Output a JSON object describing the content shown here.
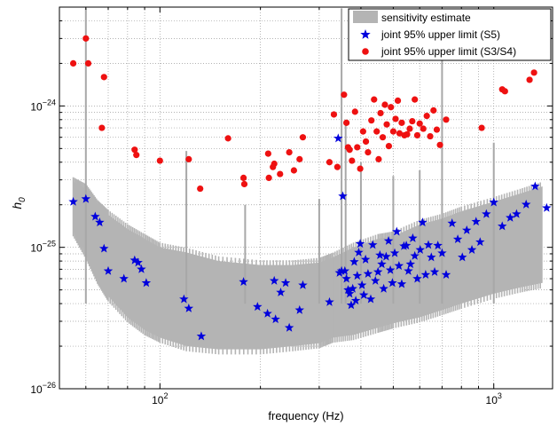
{
  "chart_data": {
    "type": "scatter",
    "title": "",
    "xlabel": "frequency (Hz)",
    "ylabel": "h",
    "ylabel_sub": "0",
    "xscale": "log",
    "yscale": "log",
    "xlim": [
      50,
      1500
    ],
    "ylim": [
      1e-26,
      5e-24
    ],
    "grid": true,
    "legend_position": "top-right",
    "x_ticks": [
      {
        "value": 100,
        "base": "10",
        "exp": "2"
      },
      {
        "value": 1000,
        "base": "10",
        "exp": "3"
      }
    ],
    "y_ticks": [
      {
        "value": 1e-26,
        "base": "10",
        "exp": "−26"
      },
      {
        "value": 1e-25,
        "base": "10",
        "exp": "−25"
      },
      {
        "value": 1e-24,
        "base": "10",
        "exp": "−24"
      }
    ],
    "series": [
      {
        "name": "sensitivity estimate",
        "kind": "band",
        "color": "#b4b4b4",
        "x": [
          55,
          60,
          65,
          70,
          80,
          90,
          100,
          120,
          150,
          200,
          250,
          300,
          330,
          380,
          450,
          500,
          600,
          700,
          800,
          1000,
          1200,
          1400
        ],
        "lower": [
          1.3e-25,
          9e-26,
          6e-26,
          4.5e-26,
          3.2e-26,
          2.6e-26,
          2.3e-26,
          2e-26,
          1.9e-26,
          1.9e-26,
          2e-26,
          2.1e-26,
          2.3e-26,
          2.4e-26,
          2.7e-26,
          2.9e-26,
          3.2e-26,
          3.6e-26,
          4e-26,
          4.7e-26,
          5.2e-26,
          5.6e-26
        ],
        "upper": [
          2.9e-25,
          2.6e-25,
          2e-25,
          1.7e-25,
          1.35e-25,
          1.15e-25,
          1e-25,
          9.2e-26,
          8e-26,
          7.5e-26,
          7.5e-26,
          7.8e-26,
          8.5e-26,
          1e-25,
          1.15e-25,
          1.2e-25,
          1.45e-25,
          1.6e-25,
          1.8e-25,
          2.1e-25,
          2.4e-25,
          2.7e-25
        ],
        "lines": [
          {
            "x": 60,
            "y": 4.9e-24
          },
          {
            "x": 120,
            "y": 4.8e-25
          },
          {
            "x": 180,
            "y": 2e-25
          },
          {
            "x": 300,
            "y": 2.2e-25
          },
          {
            "x": 350,
            "y": 4.9e-24
          },
          {
            "x": 360,
            "y": 8e-25
          },
          {
            "x": 400,
            "y": 4e-25
          },
          {
            "x": 500,
            "y": 3.2e-25
          },
          {
            "x": 600,
            "y": 3.5e-25
          },
          {
            "x": 700,
            "y": 4.4e-24
          },
          {
            "x": 1000,
            "y": 5.5e-25
          }
        ]
      },
      {
        "name": "joint 95% upper limit (S5)",
        "kind": "marker",
        "marker": "star",
        "color": "#0000dd",
        "x": [
          55,
          60,
          64,
          66,
          68,
          70,
          78,
          84,
          86,
          88,
          91,
          118,
          122,
          133,
          178,
          196,
          210,
          220,
          222,
          230,
          238,
          244,
          262,
          268,
          322,
          345,
          350,
          342,
          353,
          358,
          362,
          366,
          370,
          374,
          378,
          382,
          386,
          390,
          394,
          398,
          403,
          408,
          413,
          420,
          428,
          434,
          442,
          450,
          456,
          462,
          468,
          476,
          484,
          490,
          497,
          505,
          512,
          520,
          530,
          538,
          547,
          555,
          563,
          572,
          580,
          590,
          602,
          612,
          625,
          637,
          650,
          665,
          680,
          700,
          720,
          750,
          780,
          805,
          830,
          860,
          885,
          910,
          950,
          1000,
          1060,
          1120,
          1170,
          1250,
          1330,
          1440
        ],
        "y": [
          2.1e-25,
          2.2e-25,
          1.65e-25,
          1.5e-25,
          9.8e-26,
          6.8e-26,
          6e-26,
          8.1e-26,
          7.8e-26,
          7e-26,
          5.6e-26,
          4.3e-26,
          3.7e-26,
          2.35e-26,
          5.7e-26,
          3.8e-26,
          3.4e-26,
          5.8e-26,
          3.1e-26,
          4.8e-26,
          5.6e-26,
          2.7e-26,
          3.6e-26,
          5.4e-26,
          4.1e-26,
          6.6e-26,
          6.8e-26,
          5.9e-25,
          2.3e-25,
          6.8e-26,
          6e-26,
          5e-26,
          4.7e-26,
          3.9e-26,
          5.1e-26,
          7.9e-26,
          4.2e-26,
          6.3e-26,
          9.2e-26,
          1.06e-25,
          5.4e-26,
          4.6e-26,
          8.2e-26,
          6.5e-26,
          4.3e-26,
          1.04e-25,
          5.8e-26,
          6.7e-26,
          8.8e-26,
          7.6e-26,
          5.1e-26,
          8.6e-26,
          1.11e-25,
          6.9e-26,
          5.6e-26,
          9.1e-26,
          1.29e-25,
          7.4e-26,
          5.5e-26,
          1.02e-25,
          1.03e-25,
          6.8e-26,
          7.6e-26,
          1.16e-25,
          8.7e-26,
          6e-26,
          9.6e-26,
          1.5e-25,
          6.4e-26,
          1.04e-25,
          8.5e-26,
          6.7e-26,
          1.03e-25,
          9.1e-26,
          6.4e-26,
          1.48e-25,
          1.14e-25,
          8.5e-26,
          1.32e-25,
          9.6e-26,
          1.52e-25,
          1.09e-25,
          1.72e-25,
          2.08e-25,
          1.41e-25,
          1.62e-25,
          1.72e-25,
          2.01e-25,
          2.7e-25,
          1.9e-25
        ]
      },
      {
        "name": "joint 95% upper limit (S3/S4)",
        "kind": "marker",
        "marker": "circle",
        "color": "#ee1111",
        "x": [
          55,
          60,
          61,
          68,
          67,
          84,
          85,
          100,
          122,
          132,
          160,
          178,
          179,
          211,
          212,
          220,
          218,
          229,
          244,
          252,
          262,
          268,
          322,
          332,
          340,
          356,
          362,
          366,
          370,
          376,
          384,
          390,
          398,
          406,
          414,
          420,
          430,
          438,
          446,
          452,
          458,
          465,
          472,
          478,
          485,
          492,
          500,
          508,
          516,
          522,
          530,
          540,
          550,
          560,
          570,
          580,
          590,
          600,
          615,
          630,
          645,
          660,
          675,
          690,
          720,
          920,
          1060,
          1080,
          1280,
          1320
        ],
        "y": [
          2e-24,
          3e-24,
          2e-24,
          1.6e-24,
          7e-25,
          4.9e-25,
          4.5e-25,
          4.1e-25,
          4.2e-25,
          2.6e-25,
          5.9e-25,
          3.1e-25,
          2.8e-25,
          4.6e-25,
          3.1e-25,
          3.9e-25,
          3.7e-25,
          3.3e-25,
          4.7e-25,
          3.5e-25,
          4.2e-25,
          6e-25,
          4e-25,
          8.7e-25,
          3.7e-25,
          1.2e-24,
          7.6e-25,
          5.1e-25,
          4.9e-25,
          4.1e-25,
          9.1e-25,
          5.1e-25,
          3.6e-25,
          6.6e-25,
          5.6e-25,
          4.7e-25,
          7.9e-25,
          1.11e-24,
          6.6e-25,
          4.2e-25,
          8.9e-25,
          6e-25,
          1.02e-24,
          7.4e-25,
          5.2e-25,
          9.8e-25,
          6.6e-25,
          8.1e-25,
          1.09e-24,
          6.4e-25,
          7.6e-25,
          6.2e-25,
          6.3e-25,
          6.9e-25,
          7.8e-25,
          1.11e-24,
          6.2e-25,
          7.5e-25,
          6.9e-25,
          8.5e-25,
          6.1e-25,
          9.3e-25,
          6.8e-25,
          5.3e-25,
          8e-25,
          7e-25,
          1.31e-24,
          1.27e-24,
          1.53e-24,
          1.72e-24
        ]
      }
    ]
  }
}
